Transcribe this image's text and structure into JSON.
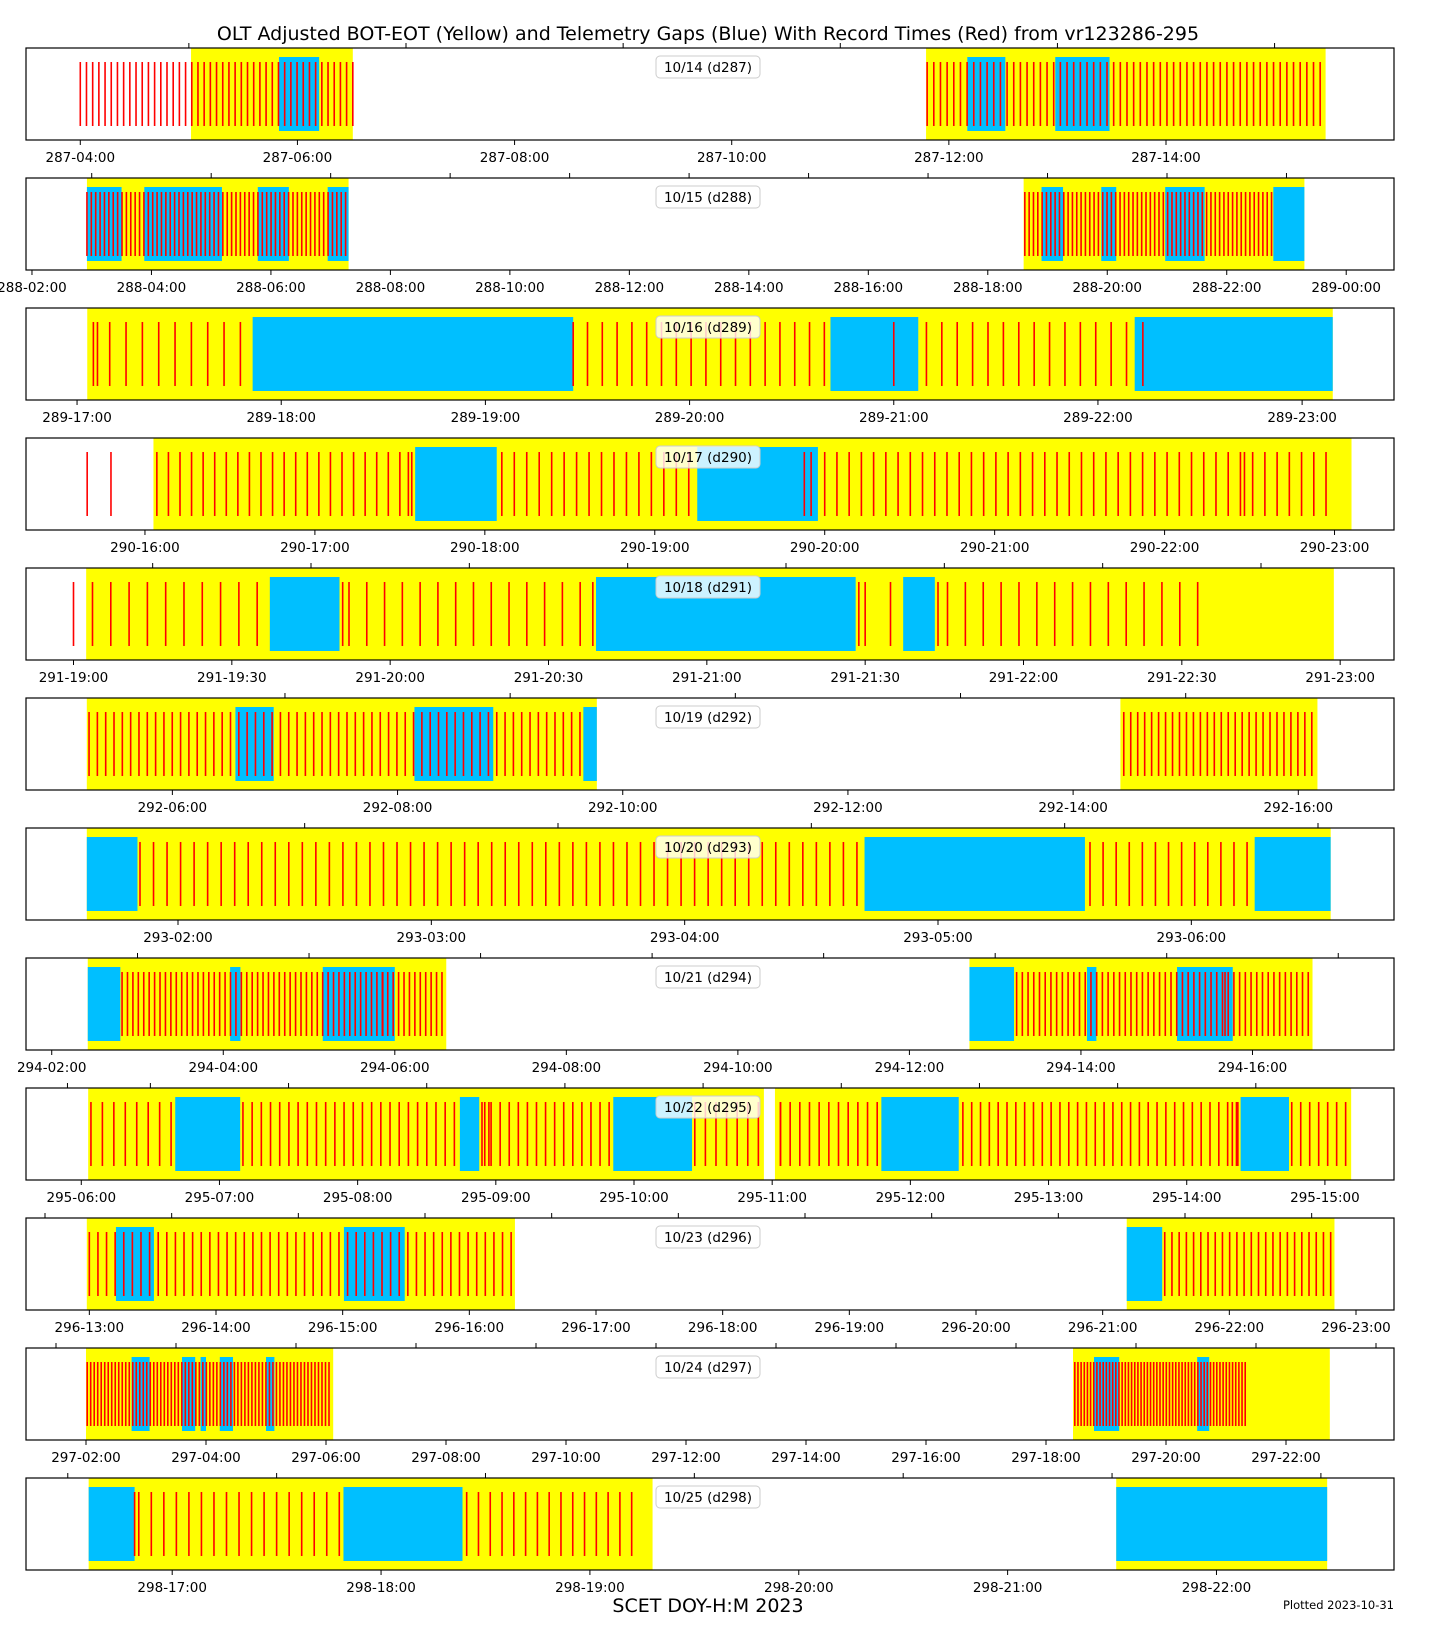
{
  "chart_data": {
    "type": "timeline",
    "title": "OLT Adjusted BOT-EOT (Yellow) and Telemetry Gaps (Blue) With Record Times (Red) from vr123286-295",
    "xlabel": "SCET DOY-H:M 2023",
    "footer": "Plotted 2023-10-31",
    "colors": {
      "bot_eot": "#ffff00",
      "gap": "#00bfff",
      "record": "#ff0000"
    },
    "panels": [
      {
        "label": "10/14 (d287)",
        "range": [
          3.5,
          16.1
        ],
        "ticks": [
          {
            "t": 4,
            "label": "287-04:00"
          },
          {
            "t": 6,
            "label": "287-06:00"
          },
          {
            "t": 8,
            "label": "287-08:00"
          },
          {
            "t": 10,
            "label": "287-10:00"
          },
          {
            "t": 12,
            "label": "287-12:00"
          },
          {
            "t": 14,
            "label": "287-14:00"
          }
        ],
        "minor": [
          5,
          7,
          9,
          11,
          13,
          15
        ],
        "yellow": [
          [
            5.02,
            6.51
          ],
          [
            11.79,
            15.47
          ]
        ],
        "blue": [
          [
            5.83,
            6.2
          ],
          [
            12.17,
            12.52
          ],
          [
            12.98,
            13.48
          ]
        ],
        "red_runs": [
          [
            4.0,
            6.51,
            45
          ],
          [
            11.8,
            15.42,
            60
          ]
        ],
        "red": []
      },
      {
        "label": "10/15 (d288)",
        "range": [
          1.9,
          24.8
        ],
        "ticks": [
          {
            "t": 2,
            "label": "288-02:00"
          },
          {
            "t": 4,
            "label": "288-04:00"
          },
          {
            "t": 6,
            "label": "288-06:00"
          },
          {
            "t": 8,
            "label": "288-08:00"
          },
          {
            "t": 10,
            "label": "288-10:00"
          },
          {
            "t": 12,
            "label": "288-12:00"
          },
          {
            "t": 14,
            "label": "288-14:00"
          },
          {
            "t": 16,
            "label": "288-16:00"
          },
          {
            "t": 18,
            "label": "288-18:00"
          },
          {
            "t": 20,
            "label": "288-20:00"
          },
          {
            "t": 22,
            "label": "288-22:00"
          },
          {
            "t": 24,
            "label": "289-00:00"
          }
        ],
        "minor": [
          3,
          5,
          7,
          9,
          11,
          13,
          15,
          17,
          19,
          21,
          23
        ],
        "yellow": [
          [
            2.92,
            7.3
          ],
          [
            18.6,
            23.3
          ]
        ],
        "blue": [
          [
            2.92,
            3.5
          ],
          [
            3.88,
            5.18
          ],
          [
            5.78,
            6.3
          ],
          [
            6.95,
            7.3
          ],
          [
            18.9,
            19.26
          ],
          [
            19.9,
            20.15
          ],
          [
            20.97,
            21.63
          ],
          [
            22.78,
            23.3
          ]
        ],
        "red_runs": [
          [
            2.92,
            7.25,
            60
          ],
          [
            18.62,
            22.75,
            58
          ]
        ],
        "red": []
      },
      {
        "label": "10/16 (d289)",
        "range": [
          16.75,
          23.45
        ],
        "ticks": [
          {
            "t": 17,
            "label": "289-17:00"
          },
          {
            "t": 18,
            "label": "289-18:00"
          },
          {
            "t": 19,
            "label": "289-19:00"
          },
          {
            "t": 20,
            "label": "289-20:00"
          },
          {
            "t": 21,
            "label": "289-21:00"
          },
          {
            "t": 22,
            "label": "289-22:00"
          },
          {
            "t": 23,
            "label": "289-23:00"
          }
        ],
        "minor": [],
        "yellow": [
          [
            17.05,
            23.15
          ]
        ],
        "blue": [
          [
            17.86,
            19.43
          ],
          [
            20.69,
            21.12
          ],
          [
            22.18,
            23.15
          ]
        ],
        "red_runs": [
          [
            17.08,
            17.8,
            10
          ],
          [
            19.5,
            20.66,
            17
          ],
          [
            21.16,
            22.14,
            14
          ]
        ],
        "red": [
          17.1,
          19.43,
          21.0,
          22.22
        ]
      },
      {
        "label": "10/17 (d290)",
        "range": [
          15.3,
          23.35
        ],
        "ticks": [
          {
            "t": 16,
            "label": "290-16:00"
          },
          {
            "t": 17,
            "label": "290-17:00"
          },
          {
            "t": 18,
            "label": "290-18:00"
          },
          {
            "t": 19,
            "label": "290-19:00"
          },
          {
            "t": 20,
            "label": "290-20:00"
          },
          {
            "t": 21,
            "label": "290-21:00"
          },
          {
            "t": 22,
            "label": "290-22:00"
          },
          {
            "t": 23,
            "label": "290-23:00"
          }
        ],
        "minor": [],
        "yellow": [
          [
            16.05,
            23.1
          ]
        ],
        "blue": [
          [
            17.59,
            18.07
          ],
          [
            19.25,
            19.96
          ]
        ],
        "red_runs": [
          [
            16.07,
            17.5,
            22
          ],
          [
            18.1,
            19.2,
            16
          ],
          [
            20.0,
            22.95,
            42
          ]
        ],
        "red": [
          15.66,
          15.8,
          17.55,
          17.57,
          19.88,
          19.92,
          22.47
        ]
      },
      {
        "label": "10/18 (d291)",
        "range": [
          18.85,
          23.17
        ],
        "ticks": [
          {
            "t": 19,
            "label": "291-19:00"
          },
          {
            "t": 19.5,
            "label": "291-19:30"
          },
          {
            "t": 20,
            "label": "291-20:00"
          },
          {
            "t": 20.5,
            "label": "291-20:30"
          },
          {
            "t": 21,
            "label": "291-21:00"
          },
          {
            "t": 21.5,
            "label": "291-21:30"
          },
          {
            "t": 22,
            "label": "291-22:00"
          },
          {
            "t": 22.5,
            "label": "291-22:30"
          },
          {
            "t": 23,
            "label": "291-23:00"
          }
        ],
        "minor": [
          19.25,
          19.75,
          20.25,
          20.75,
          21.25,
          21.75,
          22.25,
          22.75
        ],
        "yellow": [
          [
            19.04,
            22.98
          ]
        ],
        "blue": [
          [
            19.62,
            19.84
          ],
          [
            20.65,
            21.47
          ],
          [
            21.62,
            21.72
          ]
        ],
        "red_runs": [
          [
            19.06,
            19.58,
            10
          ],
          [
            19.87,
            20.6,
            14
          ],
          [
            21.5,
            21.58,
            2
          ],
          [
            21.76,
            22.55,
            15
          ]
        ],
        "red": [
          19.0,
          19.85,
          20.64,
          21.48,
          21.73
        ]
      },
      {
        "label": "10/19 (d292)",
        "range": [
          4.7,
          16.85
        ],
        "ticks": [
          {
            "t": 6,
            "label": "292-06:00"
          },
          {
            "t": 8,
            "label": "292-08:00"
          },
          {
            "t": 10,
            "label": "292-10:00"
          },
          {
            "t": 12,
            "label": "292-12:00"
          },
          {
            "t": 14,
            "label": "292-14:00"
          },
          {
            "t": 16,
            "label": "292-16:00"
          }
        ],
        "minor": [
          7,
          9,
          11,
          13,
          15
        ],
        "yellow": [
          [
            5.24,
            9.77
          ],
          [
            14.42,
            16.17
          ]
        ],
        "blue": [
          [
            6.56,
            6.9
          ],
          [
            8.15,
            8.85
          ],
          [
            9.65,
            9.77
          ]
        ],
        "red_runs": [
          [
            5.26,
            9.62,
            60
          ],
          [
            14.45,
            16.12,
            28
          ]
        ],
        "red": []
      },
      {
        "label": "10/20 (d293)",
        "range": [
          1.4,
          6.8
        ],
        "ticks": [
          {
            "t": 2,
            "label": "293-02:00"
          },
          {
            "t": 3,
            "label": "293-03:00"
          },
          {
            "t": 4,
            "label": "293-04:00"
          },
          {
            "t": 5,
            "label": "293-05:00"
          },
          {
            "t": 6,
            "label": "293-06:00"
          }
        ],
        "minor": [
          2.5,
          3.5,
          4.5,
          5.5,
          6.5
        ],
        "yellow": [
          [
            1.64,
            6.55
          ]
        ],
        "blue": [
          [
            1.64,
            1.84
          ],
          [
            4.71,
            5.58
          ],
          [
            6.25,
            6.55
          ]
        ],
        "red_runs": [
          [
            1.85,
            4.68,
            54
          ],
          [
            5.6,
            6.22,
            13
          ]
        ],
        "red": []
      },
      {
        "label": "10/21 (d294)",
        "range": [
          1.7,
          17.65
        ],
        "ticks": [
          {
            "t": 2,
            "label": "294-02:00"
          },
          {
            "t": 4,
            "label": "294-04:00"
          },
          {
            "t": 6,
            "label": "294-06:00"
          },
          {
            "t": 8,
            "label": "294-08:00"
          },
          {
            "t": 10,
            "label": "294-10:00"
          },
          {
            "t": 12,
            "label": "294-12:00"
          },
          {
            "t": 14,
            "label": "294-14:00"
          },
          {
            "t": 16,
            "label": "294-16:00"
          }
        ],
        "minor": [
          3,
          5,
          7,
          9,
          11,
          13,
          15,
          17
        ],
        "yellow": [
          [
            2.42,
            6.6
          ],
          [
            12.7,
            16.7
          ]
        ],
        "blue": [
          [
            2.42,
            2.8
          ],
          [
            4.08,
            4.2
          ],
          [
            5.16,
            6.0
          ],
          [
            12.7,
            13.22
          ],
          [
            14.07,
            14.18
          ],
          [
            15.12,
            15.77
          ]
        ],
        "red_runs": [
          [
            2.82,
            6.55,
            60
          ],
          [
            13.25,
            16.65,
            52
          ]
        ],
        "red": [
          5.86,
          15.68
        ]
      },
      {
        "label": "10/22 (d295)",
        "range": [
          5.6,
          15.5
        ],
        "ticks": [
          {
            "t": 6,
            "label": "295-06:00"
          },
          {
            "t": 7,
            "label": "295-07:00"
          },
          {
            "t": 8,
            "label": "295-08:00"
          },
          {
            "t": 9,
            "label": "295-09:00"
          },
          {
            "t": 10,
            "label": "295-10:00"
          },
          {
            "t": 11,
            "label": "295-11:00"
          },
          {
            "t": 12,
            "label": "295-12:00"
          },
          {
            "t": 13,
            "label": "295-13:00"
          },
          {
            "t": 14,
            "label": "295-14:00"
          },
          {
            "t": 15,
            "label": "295-15:00"
          }
        ],
        "minor": [
          5.9,
          6.5,
          7.5,
          8.5,
          9.5,
          10.5,
          11.5,
          12.5,
          13.5,
          14.5
        ],
        "yellow": [
          [
            6.05,
            10.94
          ],
          [
            11.02,
            15.19
          ]
        ],
        "blue": [
          [
            6.68,
            7.15
          ],
          [
            8.74,
            8.88
          ],
          [
            9.85,
            10.42
          ],
          [
            11.79,
            12.35
          ],
          [
            14.39,
            14.74
          ]
        ],
        "red_runs": [
          [
            6.07,
            6.65,
            8
          ],
          [
            7.17,
            8.7,
            24
          ],
          [
            8.9,
            9.82,
            15
          ],
          [
            10.44,
            10.9,
            7
          ],
          [
            11.06,
            11.76,
            11
          ],
          [
            12.38,
            14.36,
            32
          ],
          [
            14.76,
            15.15,
            7
          ]
        ],
        "red": [
          8.92,
          8.95,
          11.06,
          14.33,
          14.37
        ]
      },
      {
        "label": "10/23 (d296)",
        "range": [
          12.5,
          23.3
        ],
        "ticks": [
          {
            "t": 13,
            "label": "296-13:00"
          },
          {
            "t": 14,
            "label": "296-14:00"
          },
          {
            "t": 15,
            "label": "296-15:00"
          },
          {
            "t": 16,
            "label": "296-16:00"
          },
          {
            "t": 17,
            "label": "296-17:00"
          },
          {
            "t": 18,
            "label": "296-18:00"
          },
          {
            "t": 19,
            "label": "296-19:00"
          },
          {
            "t": 20,
            "label": "296-20:00"
          },
          {
            "t": 21,
            "label": "296-21:00"
          },
          {
            "t": 22,
            "label": "296-22:00"
          },
          {
            "t": 23,
            "label": "296-23:00"
          }
        ],
        "minor": [
          12.65,
          13.65,
          14.65,
          15.65,
          16.65,
          17.65,
          18.65,
          19.65,
          20.65,
          21.65,
          22.65
        ],
        "yellow": [
          [
            12.98,
            16.36
          ],
          [
            21.19,
            22.83
          ]
        ],
        "blue": [
          [
            13.21,
            13.51
          ],
          [
            15.01,
            15.49
          ],
          [
            21.19,
            21.47
          ]
        ],
        "red_runs": [
          [
            13.0,
            16.33,
            50
          ],
          [
            21.49,
            22.8,
            24
          ]
        ],
        "red": []
      },
      {
        "label": "10/24 (d297)",
        "range": [
          1.0,
          23.8
        ],
        "ticks": [
          {
            "t": 2,
            "label": "297-02:00"
          },
          {
            "t": 4,
            "label": "297-04:00"
          },
          {
            "t": 6,
            "label": "297-06:00"
          },
          {
            "t": 8,
            "label": "297-08:00"
          },
          {
            "t": 10,
            "label": "297-10:00"
          },
          {
            "t": 12,
            "label": "297-12:00"
          },
          {
            "t": 14,
            "label": "297-14:00"
          },
          {
            "t": 16,
            "label": "297-16:00"
          },
          {
            "t": 18,
            "label": "297-18:00"
          },
          {
            "t": 20,
            "label": "297-20:00"
          },
          {
            "t": 22,
            "label": "297-22:00"
          }
        ],
        "minor": [
          1.5,
          3.5,
          5.5,
          7.5,
          9.5,
          11.5,
          13.5,
          15.5,
          17.5,
          19.5,
          21.5,
          23.5
        ],
        "yellow": [
          [
            2.0,
            6.12
          ],
          [
            18.45,
            22.73
          ]
        ],
        "blue": [
          [
            2.76,
            3.06
          ],
          [
            3.6,
            3.82
          ],
          [
            3.91,
            4.0
          ],
          [
            4.23,
            4.45
          ],
          [
            5.0,
            5.14
          ],
          [
            18.8,
            19.22
          ],
          [
            20.52,
            20.72
          ]
        ],
        "red_runs": [
          [
            2.02,
            6.05,
            70
          ],
          [
            18.48,
            21.32,
            55
          ]
        ],
        "red": []
      },
      {
        "label": "10/25 (d298)",
        "range": [
          16.3,
          22.85
        ],
        "ticks": [
          {
            "t": 17,
            "label": "298-17:00"
          },
          {
            "t": 18,
            "label": "298-18:00"
          },
          {
            "t": 19,
            "label": "298-19:00"
          },
          {
            "t": 20,
            "label": "298-20:00"
          },
          {
            "t": 21,
            "label": "298-21:00"
          },
          {
            "t": 22,
            "label": "298-22:00"
          }
        ],
        "minor": [
          16.5,
          17.5,
          18.5,
          19.5,
          20.5,
          21.5,
          22.5
        ],
        "yellow": [
          [
            16.6,
            19.3
          ],
          [
            21.52,
            22.53
          ]
        ],
        "blue": [
          [
            16.6,
            16.82
          ],
          [
            17.82,
            18.39
          ],
          [
            21.52,
            22.53
          ]
        ],
        "red_runs": [
          [
            16.84,
            17.8,
            17
          ],
          [
            18.41,
            19.2,
            15
          ]
        ],
        "red": [
          16.82
        ]
      }
    ]
  }
}
